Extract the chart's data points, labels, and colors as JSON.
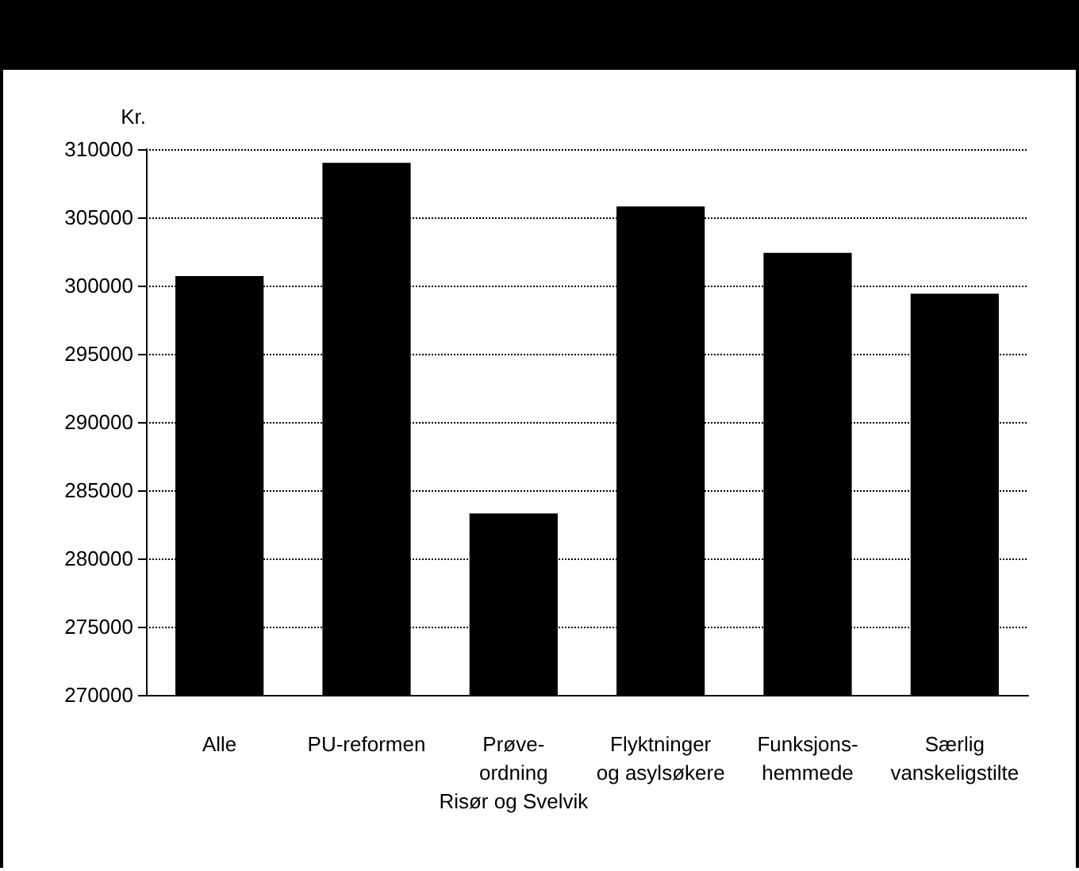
{
  "chart_data": {
    "type": "bar",
    "ylabel": "Kr.",
    "categories": [
      "Alle",
      "PU-reformen",
      "Prøve-\nordning\nRisør og Svelvik",
      "Flyktninger\nog asylsøkere",
      "Funksjons-\nhemmede",
      "Særlig\nvanskeligstilte"
    ],
    "values": [
      300700,
      309000,
      283300,
      305800,
      302400,
      299400
    ],
    "color": "#000000",
    "ylim": [
      270000,
      310000
    ],
    "yticks": [
      270000,
      275000,
      280000,
      285000,
      290000,
      295000,
      300000,
      305000,
      310000
    ],
    "grid": "y",
    "line_style": "dotted"
  }
}
